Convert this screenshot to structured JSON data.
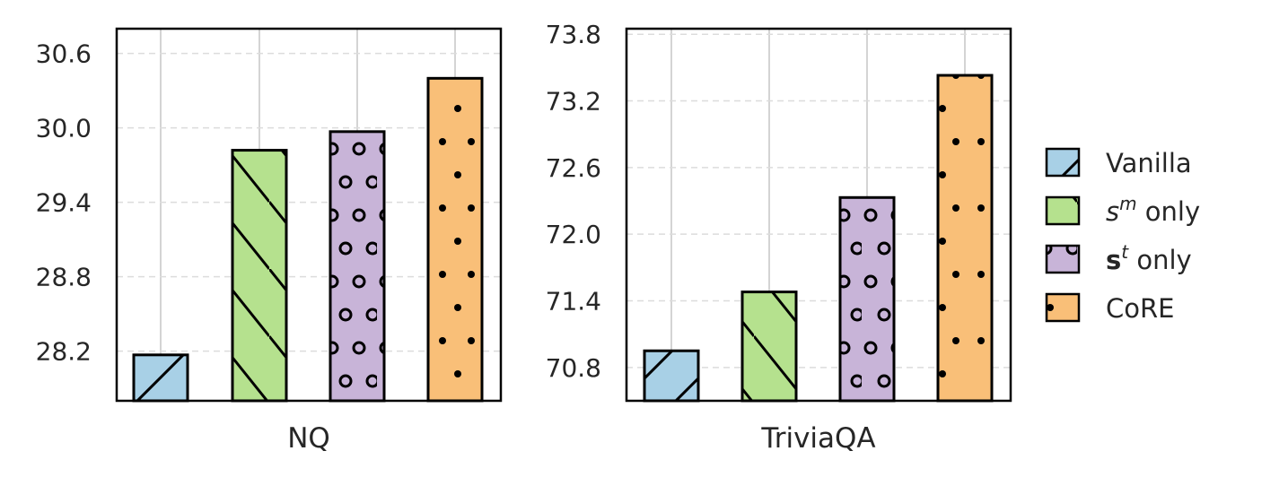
{
  "legend": {
    "placement": "right",
    "entries": [
      {
        "label": "Vanilla",
        "color": "#a8d0e6",
        "hatch": "diagonal-up"
      },
      {
        "label_base": "s",
        "label_sup": "m",
        "label_rest": " only",
        "color": "#b5e18e",
        "hatch": "diagonal-down"
      },
      {
        "label_base": "s",
        "label_sup": "t",
        "label_rest": " only",
        "color": "#c8b4d8",
        "hatch": "circles"
      },
      {
        "label": "CoRE",
        "color": "#f9bf78",
        "hatch": "dots"
      }
    ]
  },
  "chart_data": [
    {
      "type": "bar",
      "xlabel": "NQ",
      "categories": [
        "Vanilla",
        "s^m only",
        "s^t only",
        "CoRE"
      ],
      "values": [
        28.17,
        29.82,
        29.97,
        30.4
      ],
      "ylim": [
        27.8,
        30.8
      ],
      "yticks": [
        "28.2",
        "28.8",
        "29.4",
        "30.0",
        "30.6"
      ],
      "grid": true
    },
    {
      "type": "bar",
      "xlabel": "TriviaQA",
      "categories": [
        "Vanilla",
        "s^m only",
        "s^t only",
        "CoRE"
      ],
      "values": [
        70.95,
        71.48,
        72.33,
        73.43
      ],
      "ylim": [
        70.5,
        73.85
      ],
      "yticks": [
        "70.8",
        "71.4",
        "72.0",
        "72.6",
        "73.2",
        "73.8"
      ],
      "grid": true
    }
  ]
}
